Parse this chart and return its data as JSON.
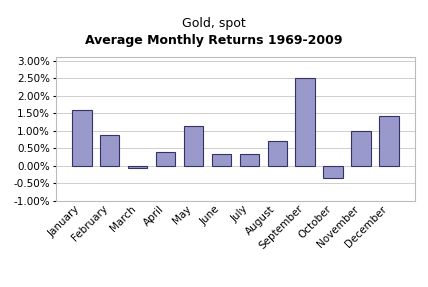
{
  "title_line1": "Gold, spot",
  "title_line2": "Average Monthly Returns 1969-2009",
  "months": [
    "January",
    "February",
    "March",
    "April",
    "May",
    "June",
    "July",
    "August",
    "September",
    "October",
    "November",
    "December"
  ],
  "values": [
    0.016,
    0.0087,
    -0.0005,
    0.004,
    0.0115,
    0.0035,
    0.0035,
    0.007,
    0.025,
    -0.0035,
    0.01,
    0.0143
  ],
  "bar_color": "#9999CC",
  "bar_edge_color": "#333366",
  "ylim": [
    -0.01,
    0.031
  ],
  "yticks": [
    -0.01,
    -0.005,
    0.0,
    0.005,
    0.01,
    0.015,
    0.02,
    0.025,
    0.03
  ],
  "background_color": "#ffffff",
  "grid_color": "#bbbbbb",
  "title_fontsize": 9,
  "tick_fontsize": 7.5
}
